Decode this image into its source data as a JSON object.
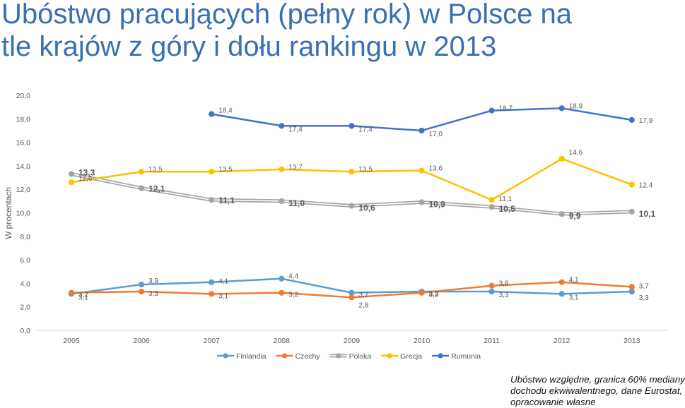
{
  "title_lines": [
    "Ubóstwo pracujących (pełny rok) w Polsce na",
    "tle krajów z góry i dołu rankingu w 2013"
  ],
  "footnote_lines": [
    "Ubóstwo względne, granica 60% mediany",
    "dochodu ekwiwalentnego, dane Eurostat,",
    "opracowanie własne"
  ],
  "chart_data": {
    "type": "line",
    "categories": [
      "2005",
      "2006",
      "2007",
      "2008",
      "2009",
      "2010",
      "2011",
      "2012",
      "2013"
    ],
    "ylabel": "W procentach",
    "xlabel": "",
    "ylim": [
      0,
      20
    ],
    "yticks": [
      "0,0",
      "2,0",
      "4,0",
      "6,0",
      "8,0",
      "10,0",
      "12,0",
      "14,0",
      "16,0",
      "18,0",
      "20,0"
    ],
    "grid": false,
    "legend_position": "bottom",
    "series": [
      {
        "name": "Finlandia",
        "color": "#5b9bd5",
        "style": "solid",
        "values": [
          3.1,
          3.9,
          4.1,
          4.4,
          3.2,
          3.3,
          3.3,
          3.1,
          3.3
        ],
        "labels": [
          "3,1",
          "3,9",
          "4,1",
          "4,4",
          "3,2",
          "3,3",
          "3,3",
          "3,1",
          "3,3"
        ]
      },
      {
        "name": "Czechy",
        "color": "#ed7d31",
        "style": "solid",
        "values": [
          3.2,
          3.3,
          3.1,
          3.2,
          2.8,
          3.2,
          3.8,
          4.1,
          3.7
        ],
        "labels": [
          "3,2",
          "3,3",
          "3,1",
          "3,2",
          "2,8",
          "3,2",
          "3,8",
          "4,1",
          "3,7"
        ]
      },
      {
        "name": "Polska",
        "color": "#a5a5a5",
        "style": "double",
        "values": [
          13.3,
          12.1,
          11.1,
          11.0,
          10.6,
          10.9,
          10.5,
          9.9,
          10.1
        ],
        "labels": [
          "13,3",
          "12,1",
          "11,1",
          "11,0",
          "10,6",
          "10,9",
          "10,5",
          "9,9",
          "10,1"
        ]
      },
      {
        "name": "Grecja",
        "color": "#ffc000",
        "style": "solid",
        "values": [
          12.6,
          13.5,
          13.5,
          13.7,
          13.5,
          13.6,
          11.1,
          14.6,
          12.4
        ],
        "labels": [
          "12,6",
          "13,5",
          "13,5",
          "13,7",
          "13,5",
          "13,6",
          "11,1",
          "14,6",
          "12,4"
        ]
      },
      {
        "name": "Rumunia",
        "color": "#4472c4",
        "style": "solid",
        "values": [
          null,
          null,
          18.4,
          17.4,
          17.4,
          17.0,
          18.7,
          18.9,
          17.9
        ],
        "labels": [
          "",
          "",
          "18,4",
          "17,4",
          "17,4",
          "17,0",
          "18,7",
          "18,9",
          "17,9"
        ]
      }
    ]
  }
}
